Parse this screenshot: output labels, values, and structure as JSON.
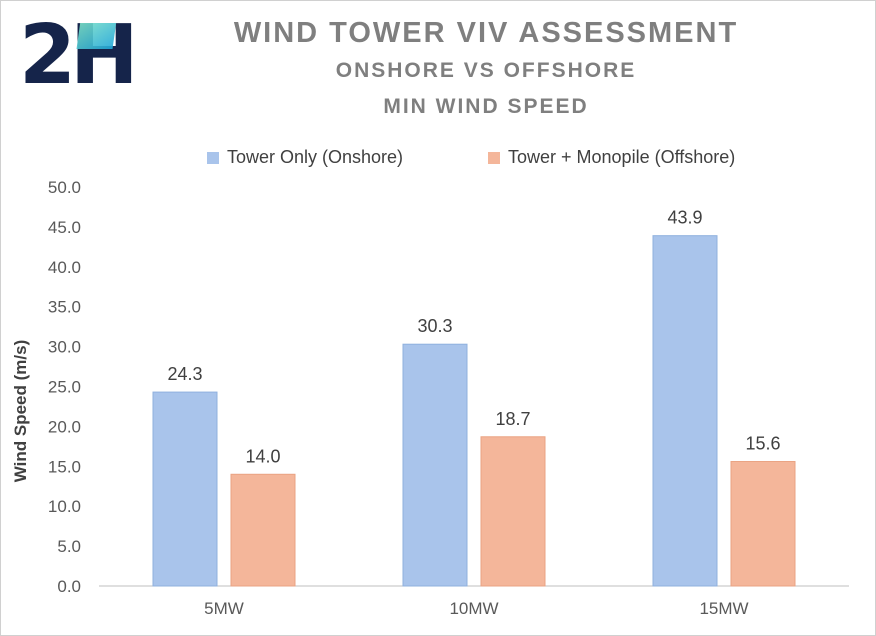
{
  "logo": {
    "text": "2H"
  },
  "chart_data": {
    "type": "bar",
    "title": "WIND TOWER VIV ASSESSMENT",
    "subtitle": "ONSHORE VS OFFSHORE",
    "subtitle2": "MIN WIND SPEED",
    "xlabel": "",
    "ylabel": "Wind Speed (m/s)",
    "ylim": [
      0,
      50
    ],
    "yticks": [
      "0.0",
      "5.0",
      "10.0",
      "15.0",
      "20.0",
      "25.0",
      "30.0",
      "35.0",
      "40.0",
      "45.0",
      "50.0"
    ],
    "categories": [
      "5MW",
      "10MW",
      "15MW"
    ],
    "series": [
      {
        "name": "Tower Only (Onshore)",
        "values": [
          24.3,
          30.3,
          43.9
        ],
        "color": "#A9C4EB",
        "label_values": [
          "24.3",
          "30.3",
          "43.9"
        ]
      },
      {
        "name": "Tower + Monopile (Offshore)",
        "values": [
          14.0,
          18.7,
          15.6
        ],
        "color": "#F4B69A",
        "label_values": [
          "14.0",
          "18.7",
          "15.6"
        ]
      }
    ],
    "grid": false,
    "legend": "top"
  }
}
